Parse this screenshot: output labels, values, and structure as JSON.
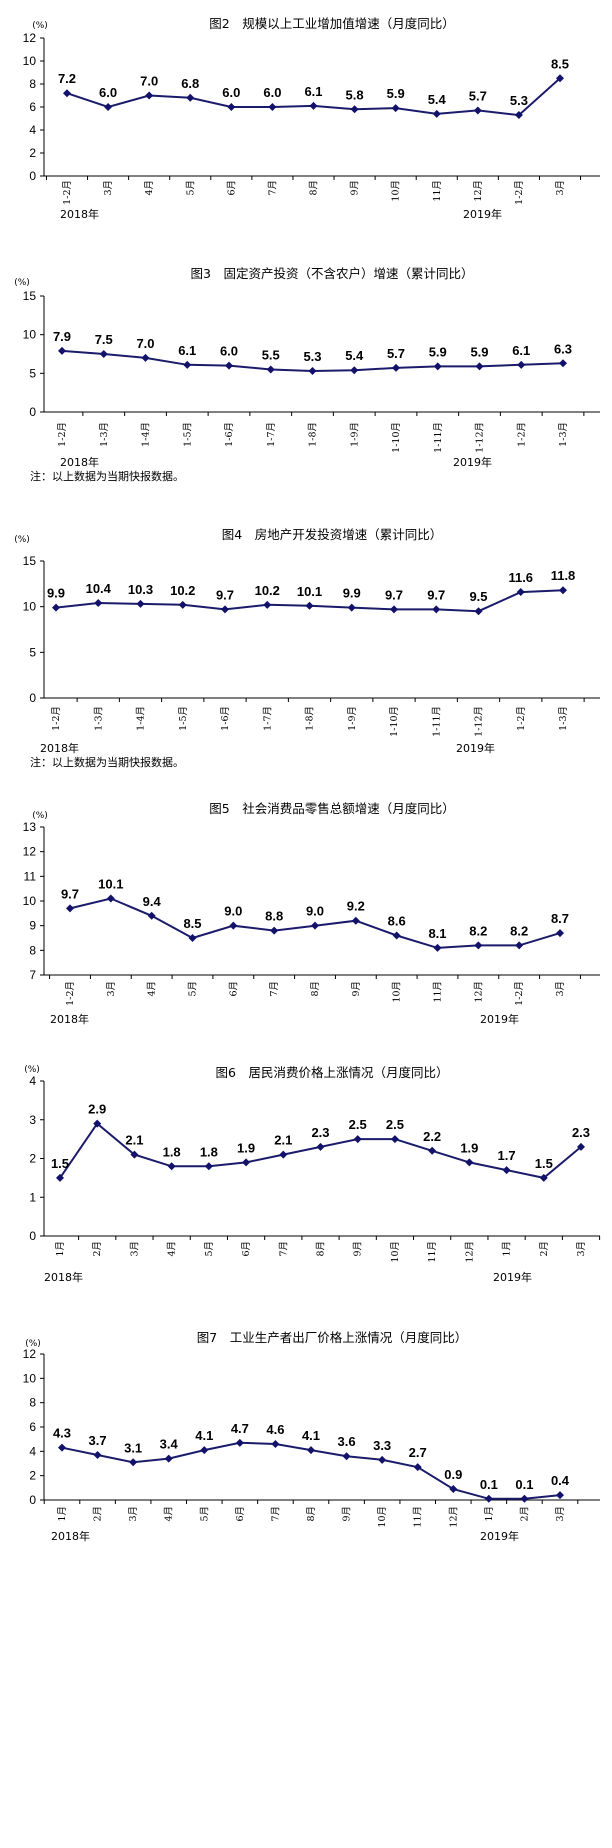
{
  "colors": {
    "line": "#1b1b6b",
    "marker": "#12126a",
    "axis": "#000000"
  },
  "chart_data": [
    {
      "type": "line",
      "title": "图2　规模以上工业增加值增速（月度同比）",
      "ylabel": "(%)",
      "ylim": [
        0,
        12
      ],
      "yticks": [
        0,
        2,
        4,
        6,
        8,
        10,
        12
      ],
      "categories": [
        "1-2月",
        "3月",
        "4月",
        "5月",
        "6月",
        "7月",
        "8月",
        "9月",
        "10月",
        "11月",
        "12月",
        "1-2月",
        "3月"
      ],
      "values": [
        7.2,
        6.0,
        7.0,
        6.8,
        6.0,
        6.0,
        6.1,
        5.8,
        5.9,
        5.4,
        5.7,
        5.3,
        8.5
      ],
      "labels": [
        "7.2",
        "6.0",
        "7.0",
        "6.8",
        "6.0",
        "6.0",
        "6.1",
        "5.8",
        "5.9",
        "5.4",
        "5.7",
        "5.3",
        "8.5"
      ],
      "year_labels": [
        "2018年",
        "2019年"
      ],
      "note": ""
    },
    {
      "type": "line",
      "title": "图3　固定资产投资（不含农户）增速（累计同比）",
      "ylabel": "(%)",
      "ylim": [
        0,
        15
      ],
      "yticks": [
        0,
        5,
        10,
        15
      ],
      "categories": [
        "1-2月",
        "1-3月",
        "1-4月",
        "1-5月",
        "1-6月",
        "1-7月",
        "1-8月",
        "1-9月",
        "1-10月",
        "1-11月",
        "1-12月",
        "1-2月",
        "1-3月"
      ],
      "values": [
        7.9,
        7.5,
        7.0,
        6.1,
        6.0,
        5.5,
        5.3,
        5.4,
        5.7,
        5.9,
        5.9,
        6.1,
        6.3
      ],
      "labels": [
        "7.9",
        "7.5",
        "7.0",
        "6.1",
        "6.0",
        "5.5",
        "5.3",
        "5.4",
        "5.7",
        "5.9",
        "5.9",
        "6.1",
        "6.3"
      ],
      "year_labels": [
        "2018年",
        "2019年"
      ],
      "note": "注：以上数据为当期快报数据。"
    },
    {
      "type": "line",
      "title": "图4　房地产开发投资增速（累计同比）",
      "ylabel": "(%)",
      "ylim": [
        0,
        15
      ],
      "yticks": [
        0,
        5,
        10,
        15
      ],
      "categories": [
        "1-2月",
        "1-3月",
        "1-4月",
        "1-5月",
        "1-6月",
        "1-7月",
        "1-8月",
        "1-9月",
        "1-10月",
        "1-11月",
        "1-12月",
        "1-2月",
        "1-3月"
      ],
      "values": [
        9.9,
        10.4,
        10.3,
        10.2,
        9.7,
        10.2,
        10.1,
        9.9,
        9.7,
        9.7,
        9.5,
        11.6,
        11.8
      ],
      "labels": [
        "9.9",
        "10.4",
        "10.3",
        "10.2",
        "9.7",
        "10.2",
        "10.1",
        "9.9",
        "9.7",
        "9.7",
        "9.5",
        "11.6",
        "11.8"
      ],
      "year_labels": [
        "2018年",
        "2019年"
      ],
      "note": "注：以上数据为当期快报数据。"
    },
    {
      "type": "line",
      "title": "图5　社会消费品零售总额增速（月度同比）",
      "ylabel": "(%)",
      "ylim": [
        7,
        13
      ],
      "yticks": [
        7,
        8,
        9,
        10,
        11,
        12,
        13
      ],
      "categories": [
        "1-2月",
        "3月",
        "4月",
        "5月",
        "6月",
        "7月",
        "8月",
        "9月",
        "10月",
        "11月",
        "12月",
        "1-2月",
        "3月"
      ],
      "values": [
        9.7,
        10.1,
        9.4,
        8.5,
        9.0,
        8.8,
        9.0,
        9.2,
        8.6,
        8.1,
        8.2,
        8.2,
        8.7
      ],
      "labels": [
        "9.7",
        "10.1",
        "9.4",
        "8.5",
        "9.0",
        "8.8",
        "9.0",
        "9.2",
        "8.6",
        "8.1",
        "8.2",
        "8.2",
        "8.7"
      ],
      "year_labels": [
        "2018年",
        "2019年"
      ],
      "note": ""
    },
    {
      "type": "line",
      "title": "图6　居民消费价格上涨情况（月度同比）",
      "ylabel": "(%)",
      "ylim": [
        0,
        4
      ],
      "yticks": [
        0,
        1,
        2,
        3,
        4
      ],
      "categories": [
        "1月",
        "2月",
        "3月",
        "4月",
        "5月",
        "6月",
        "7月",
        "8月",
        "9月",
        "10月",
        "11月",
        "12月",
        "1月",
        "2月",
        "3月"
      ],
      "values": [
        1.5,
        2.9,
        2.1,
        1.8,
        1.8,
        1.9,
        2.1,
        2.3,
        2.5,
        2.5,
        2.2,
        1.9,
        1.7,
        1.5,
        2.3
      ],
      "labels": [
        "1.5",
        "2.9",
        "2.1",
        "1.8",
        "1.8",
        "1.9",
        "2.1",
        "2.3",
        "2.5",
        "2.5",
        "2.2",
        "1.9",
        "1.7",
        "1.5",
        "2.3"
      ],
      "year_labels": [
        "2018年",
        "2019年"
      ],
      "note": ""
    },
    {
      "type": "line",
      "title": "图7　工业生产者出厂价格上涨情况（月度同比）",
      "ylabel": "(%)",
      "ylim": [
        0,
        12
      ],
      "yticks": [
        0,
        2,
        4,
        6,
        8,
        10,
        12
      ],
      "categories": [
        "1月",
        "2月",
        "3月",
        "4月",
        "5月",
        "6月",
        "7月",
        "8月",
        "9月",
        "10月",
        "11月",
        "12月",
        "1月",
        "2月",
        "3月"
      ],
      "values": [
        4.3,
        3.7,
        3.1,
        3.4,
        4.1,
        4.7,
        4.6,
        4.1,
        3.6,
        3.3,
        2.7,
        0.9,
        0.1,
        0.1,
        0.4
      ],
      "labels": [
        "4.3",
        "3.7",
        "3.1",
        "3.4",
        "4.1",
        "4.7",
        "4.6",
        "4.1",
        "3.6",
        "3.3",
        "2.7",
        "0.9",
        "0.1",
        "0.1",
        "0.4"
      ],
      "year_labels": [
        "2018年",
        "2019年"
      ],
      "note": ""
    }
  ]
}
